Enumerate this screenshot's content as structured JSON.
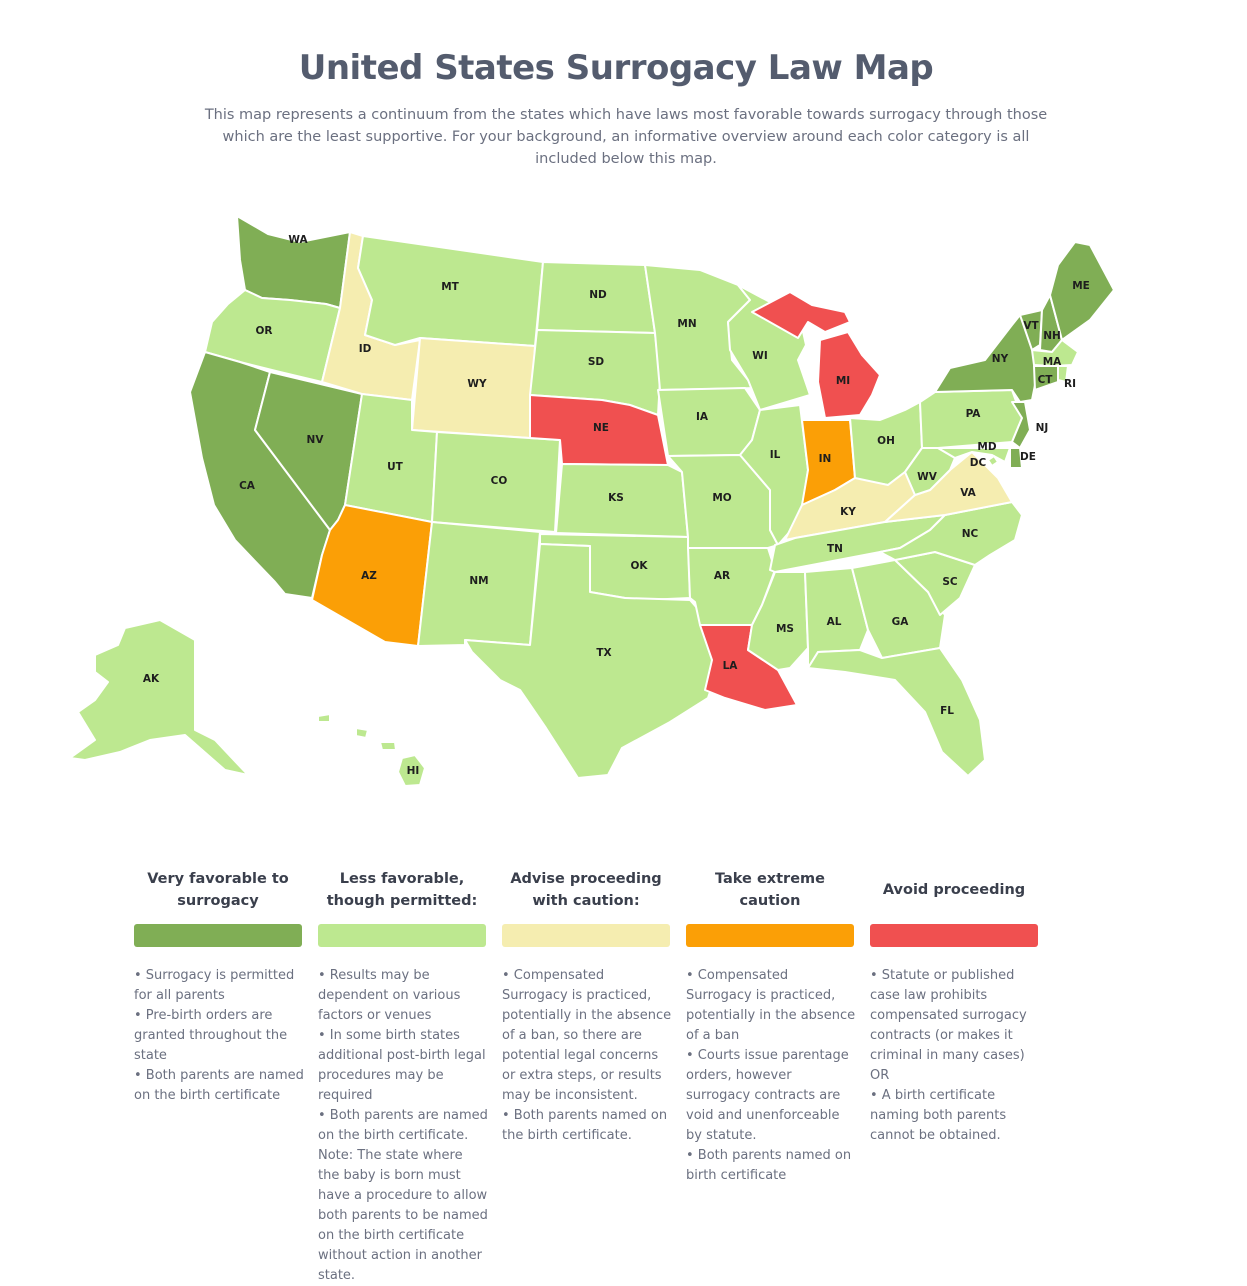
{
  "header": {
    "title": "United States Surrogacy Law Map",
    "subtitle": "This map represents a continuum from the states which have laws most favorable towards surrogacy through those which are the least supportive. For your background, an informative overview around each color category is all included below this map."
  },
  "colors": {
    "very_favorable": "#80ae55",
    "less_favorable": "#bde890",
    "caution": "#f5edb0",
    "extreme_caution": "#fb9f06",
    "avoid": "#f05050"
  },
  "states": [
    {
      "abbr": "WA",
      "category": "very_favorable"
    },
    {
      "abbr": "OR",
      "category": "less_favorable"
    },
    {
      "abbr": "CA",
      "category": "very_favorable"
    },
    {
      "abbr": "NV",
      "category": "very_favorable"
    },
    {
      "abbr": "ID",
      "category": "caution"
    },
    {
      "abbr": "MT",
      "category": "less_favorable"
    },
    {
      "abbr": "WY",
      "category": "caution"
    },
    {
      "abbr": "UT",
      "category": "less_favorable"
    },
    {
      "abbr": "AZ",
      "category": "extreme_caution"
    },
    {
      "abbr": "CO",
      "category": "less_favorable"
    },
    {
      "abbr": "NM",
      "category": "less_favorable"
    },
    {
      "abbr": "ND",
      "category": "less_favorable"
    },
    {
      "abbr": "SD",
      "category": "less_favorable"
    },
    {
      "abbr": "NE",
      "category": "avoid"
    },
    {
      "abbr": "KS",
      "category": "less_favorable"
    },
    {
      "abbr": "OK",
      "category": "less_favorable"
    },
    {
      "abbr": "TX",
      "category": "less_favorable"
    },
    {
      "abbr": "MN",
      "category": "less_favorable"
    },
    {
      "abbr": "IA",
      "category": "less_favorable"
    },
    {
      "abbr": "MO",
      "category": "less_favorable"
    },
    {
      "abbr": "AR",
      "category": "less_favorable"
    },
    {
      "abbr": "LA",
      "category": "avoid"
    },
    {
      "abbr": "WI",
      "category": "less_favorable"
    },
    {
      "abbr": "IL",
      "category": "less_favorable"
    },
    {
      "abbr": "MI",
      "category": "avoid"
    },
    {
      "abbr": "IN",
      "category": "extreme_caution"
    },
    {
      "abbr": "OH",
      "category": "less_favorable"
    },
    {
      "abbr": "KY",
      "category": "caution"
    },
    {
      "abbr": "TN",
      "category": "less_favorable"
    },
    {
      "abbr": "MS",
      "category": "less_favorable"
    },
    {
      "abbr": "AL",
      "category": "less_favorable"
    },
    {
      "abbr": "GA",
      "category": "less_favorable"
    },
    {
      "abbr": "FL",
      "category": "less_favorable"
    },
    {
      "abbr": "SC",
      "category": "less_favorable"
    },
    {
      "abbr": "NC",
      "category": "less_favorable"
    },
    {
      "abbr": "VA",
      "category": "caution"
    },
    {
      "abbr": "WV",
      "category": "less_favorable"
    },
    {
      "abbr": "PA",
      "category": "less_favorable"
    },
    {
      "abbr": "NY",
      "category": "very_favorable"
    },
    {
      "abbr": "VT",
      "category": "very_favorable"
    },
    {
      "abbr": "NH",
      "category": "very_favorable"
    },
    {
      "abbr": "ME",
      "category": "very_favorable"
    },
    {
      "abbr": "MA",
      "category": "less_favorable"
    },
    {
      "abbr": "RI",
      "category": "less_favorable"
    },
    {
      "abbr": "CT",
      "category": "very_favorable"
    },
    {
      "abbr": "NJ",
      "category": "very_favorable"
    },
    {
      "abbr": "DE",
      "category": "very_favorable"
    },
    {
      "abbr": "MD",
      "category": "less_favorable"
    },
    {
      "abbr": "DC",
      "category": "less_favorable"
    },
    {
      "abbr": "AK",
      "category": "less_favorable"
    },
    {
      "abbr": "HI",
      "category": "less_favorable"
    }
  ],
  "legend": [
    {
      "title": "Very favorable to surrogacy",
      "category": "very_favorable",
      "bullets": [
        "• Surrogacy is permitted for all parents",
        "• Pre-birth orders are granted throughout the state",
        "• Both parents are named on the birth certificate"
      ],
      "note": ""
    },
    {
      "title": "Less favorable, though permitted:",
      "category": "less_favorable",
      "bullets": [
        "• Results may be dependent on various factors or venues",
        "• In some birth states additional post-birth legal procedures may be required",
        "• Both parents are named on the birth certificate."
      ],
      "note": "Note: The state where the baby is born must have a procedure to allow both parents to be named on the birth certificate without action in another state."
    },
    {
      "title": "Advise proceeding with caution:",
      "category": "caution",
      "bullets": [
        "• Compensated Surrogacy is practiced, potentially in the absence of a ban, so there are potential legal concerns or extra steps, or results may be inconsistent.",
        "• Both parents named on the birth certificate."
      ],
      "note": ""
    },
    {
      "title": "Take extreme caution",
      "category": "extreme_caution",
      "bullets": [
        "• Compensated Surrogacy is practiced, potentially in the absence of a ban",
        "• Courts issue parentage orders, however surrogacy contracts are void and unenforceable by statute.",
        "• Both parents named on birth certificate"
      ],
      "note": ""
    },
    {
      "title": "Avoid proceeding",
      "category": "avoid",
      "bullets": [
        "• Statute or published case law prohibits compensated surrogacy contracts (or makes it criminal in many cases) OR",
        "• A birth certificate naming both parents cannot be obtained."
      ],
      "note": ""
    }
  ]
}
